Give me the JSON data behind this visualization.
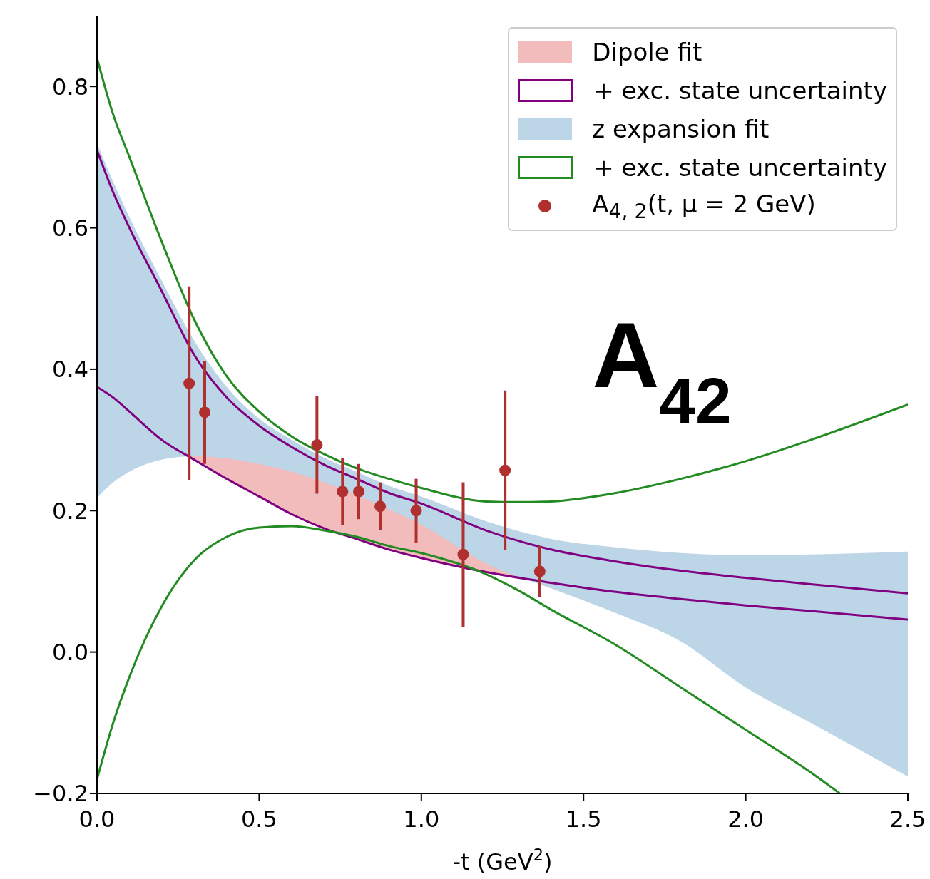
{
  "chart_data": {
    "type": "area",
    "xlabel": "-t (GeV$^{2}$)",
    "xlim": [
      0,
      2.5
    ],
    "ylim": [
      -0.2,
      0.9
    ],
    "xticks": [
      {
        "value": 0,
        "label": "0.0"
      },
      {
        "value": 0.5,
        "label": "0.5"
      },
      {
        "value": 1,
        "label": "1.0"
      },
      {
        "value": 1.5,
        "label": "1.5"
      },
      {
        "value": 2,
        "label": "2.0"
      },
      {
        "value": 2.5,
        "label": "2.5"
      }
    ],
    "yticks": [
      {
        "value": -0.2,
        "label": "−0.2"
      },
      {
        "value": 0,
        "label": "0.0"
      },
      {
        "value": 0.2,
        "label": "0.2"
      },
      {
        "value": 0.4,
        "label": "0.4"
      },
      {
        "value": 0.6,
        "label": "0.6"
      },
      {
        "value": 0.8,
        "label": "0.8"
      }
    ],
    "legend": "top right",
    "grid": false,
    "annotations": [
      "A$_{42}$"
    ],
    "series": [
      {
        "name": "Dipole fit",
        "color": "#f2bcbc",
        "x": [
          0,
          0.05,
          0.1,
          0.2,
          0.3,
          0.4,
          0.5,
          0.6,
          0.7,
          0.8,
          0.9,
          1.0,
          1.2,
          1.4,
          1.6,
          1.8,
          2.0,
          2.2,
          2.5
        ],
        "values": [
          null,
          null,
          null,
          null,
          null,
          null,
          null,
          null,
          null,
          null,
          null,
          null,
          null,
          null,
          null,
          null,
          null,
          null,
          null
        ],
        "lower": [
          0.375,
          0.36,
          0.34,
          0.3,
          0.272,
          0.245,
          0.22,
          0.195,
          0.175,
          0.16,
          0.145,
          0.133,
          0.113,
          0.098,
          0.085,
          0.075,
          0.066,
          0.058,
          0.046
        ],
        "upper": [
          0.71,
          0.65,
          0.6,
          0.51,
          0.42,
          0.36,
          0.32,
          0.29,
          0.265,
          0.245,
          0.225,
          0.21,
          0.172,
          0.145,
          0.128,
          0.115,
          0.105,
          0.096,
          0.083
        ]
      },
      {
        "name": "+ exc. state uncertainty",
        "type": "line",
        "color": "#800080",
        "x": [
          0,
          0.05,
          0.1,
          0.2,
          0.3,
          0.4,
          0.5,
          0.6,
          0.7,
          0.8,
          0.9,
          1.0,
          1.2,
          1.4,
          1.6,
          1.8,
          2.0,
          2.2,
          2.5
        ],
        "values": [
          0.71,
          0.65,
          0.6,
          0.51,
          0.42,
          0.36,
          0.32,
          0.29,
          0.265,
          0.245,
          0.225,
          0.21,
          0.172,
          0.145,
          0.128,
          0.115,
          0.105,
          0.096,
          0.083
        ]
      },
      {
        "type": "line",
        "color": "#800080",
        "x": [
          0,
          0.05,
          0.1,
          0.2,
          0.3,
          0.4,
          0.5,
          0.6,
          0.7,
          0.8,
          0.9,
          1.0,
          1.2,
          1.4,
          1.6,
          1.8,
          2.0,
          2.2,
          2.5
        ],
        "values": [
          0.375,
          0.36,
          0.34,
          0.3,
          0.272,
          0.245,
          0.22,
          0.195,
          0.175,
          0.16,
          0.145,
          0.133,
          0.113,
          0.098,
          0.085,
          0.075,
          0.066,
          0.058,
          0.046
        ]
      },
      {
        "name": "z expansion fit",
        "color": "#bcd5e7",
        "x": [
          0,
          0.05,
          0.1,
          0.2,
          0.3,
          0.4,
          0.5,
          0.6,
          0.7,
          0.8,
          0.9,
          1.0,
          1.2,
          1.4,
          1.6,
          1.8,
          2.0,
          2.2,
          2.5
        ],
        "values": [
          null,
          null,
          null,
          null,
          null,
          null,
          null,
          null,
          null,
          null,
          null,
          null,
          null,
          null,
          null,
          null,
          null,
          null,
          null
        ],
        "lower": [
          0.218,
          0.24,
          0.255,
          0.272,
          0.277,
          0.274,
          0.266,
          0.255,
          0.24,
          0.222,
          0.202,
          0.18,
          0.125,
          0.09,
          0.055,
          0.015,
          -0.05,
          -0.1,
          -0.176
        ],
        "upper": [
          0.72,
          0.665,
          0.615,
          0.525,
          0.44,
          0.375,
          0.33,
          0.3,
          0.275,
          0.255,
          0.235,
          0.22,
          0.185,
          0.16,
          0.148,
          0.14,
          0.137,
          0.138,
          0.142
        ]
      },
      {
        "name": "+ exc. state uncertainty",
        "type": "line",
        "color": "#228b22",
        "x": [
          0,
          0.05,
          0.1,
          0.2,
          0.3,
          0.4,
          0.5,
          0.6,
          0.7,
          0.8,
          0.9,
          1.0,
          1.2,
          1.3,
          1.4,
          1.6,
          1.8,
          2.0,
          2.2,
          2.5
        ],
        "values": [
          0.84,
          0.76,
          0.7,
          0.58,
          0.47,
          0.39,
          0.34,
          0.305,
          0.28,
          0.26,
          0.245,
          0.232,
          0.213,
          0.212,
          0.213,
          0.225,
          0.245,
          0.27,
          0.3,
          0.35
        ]
      },
      {
        "type": "line",
        "color": "#228b22",
        "x": [
          0,
          0.05,
          0.1,
          0.2,
          0.3,
          0.4,
          0.5,
          0.6,
          0.7,
          0.8,
          0.9,
          1.0,
          1.2,
          1.3,
          1.4,
          1.6,
          1.8,
          2.0,
          2.2,
          2.29
        ],
        "values": [
          -0.18,
          -0.1,
          -0.035,
          0.065,
          0.13,
          0.163,
          0.176,
          0.178,
          0.172,
          0.163,
          0.15,
          0.14,
          0.11,
          0.087,
          0.06,
          0.01,
          -0.05,
          -0.11,
          -0.17,
          -0.2
        ]
      },
      {
        "name": "A$_{4, 2}$(t, μ = 2 GeV)",
        "type": "scatter",
        "color": "#b03030",
        "marker": "circle",
        "x": [
          0.284,
          0.332,
          0.678,
          0.757,
          0.807,
          0.873,
          0.984,
          1.129,
          1.258,
          1.365
        ],
        "values": [
          0.38,
          0.339,
          0.293,
          0.227,
          0.227,
          0.206,
          0.2,
          0.138,
          0.257,
          0.114
        ],
        "errors": [
          0.137,
          0.073,
          0.069,
          0.047,
          0.039,
          0.034,
          0.045,
          0.102,
          0.113,
          0.036
        ]
      }
    ]
  }
}
